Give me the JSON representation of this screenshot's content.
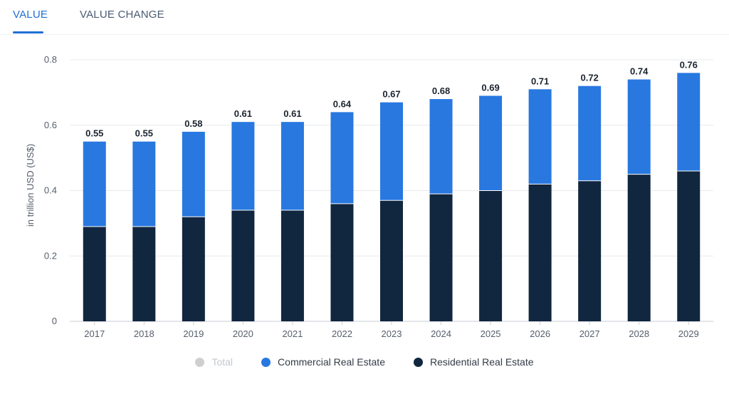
{
  "tabs": [
    {
      "label": "VALUE",
      "active": true
    },
    {
      "label": "VALUE CHANGE",
      "active": false
    }
  ],
  "colors": {
    "accent": "#1f6fd6",
    "commercial": "#2878e0",
    "residential": "#11263f",
    "total_disabled": "#cfcfcf"
  },
  "chart_data": {
    "type": "bar",
    "stacked": true,
    "categories": [
      "2017",
      "2018",
      "2019",
      "2020",
      "2021",
      "2022",
      "2023",
      "2024",
      "2025",
      "2026",
      "2027",
      "2028",
      "2029"
    ],
    "series": [
      {
        "name": "Residential Real Estate",
        "values": [
          0.29,
          0.29,
          0.32,
          0.34,
          0.34,
          0.36,
          0.37,
          0.39,
          0.4,
          0.42,
          0.43,
          0.45,
          0.46
        ]
      },
      {
        "name": "Commercial Real Estate",
        "values": [
          0.26,
          0.26,
          0.26,
          0.27,
          0.27,
          0.28,
          0.3,
          0.29,
          0.29,
          0.29,
          0.29,
          0.29,
          0.3
        ]
      }
    ],
    "totals": [
      "0.55",
      "0.55",
      "0.58",
      "0.61",
      "0.61",
      "0.64",
      "0.67",
      "0.68",
      "0.69",
      "0.71",
      "0.72",
      "0.74",
      "0.76"
    ],
    "ylabel": "in trillion USD (US$)",
    "ylim": [
      0,
      0.8
    ],
    "yticks": [
      "0",
      "0.2",
      "0.4",
      "0.6",
      "0.8"
    ],
    "grid": true,
    "legend_position": "bottom-center"
  },
  "legend": [
    {
      "label": "Total",
      "disabled": true
    },
    {
      "label": "Commercial Real Estate",
      "disabled": false
    },
    {
      "label": "Residential Real Estate",
      "disabled": false
    }
  ]
}
